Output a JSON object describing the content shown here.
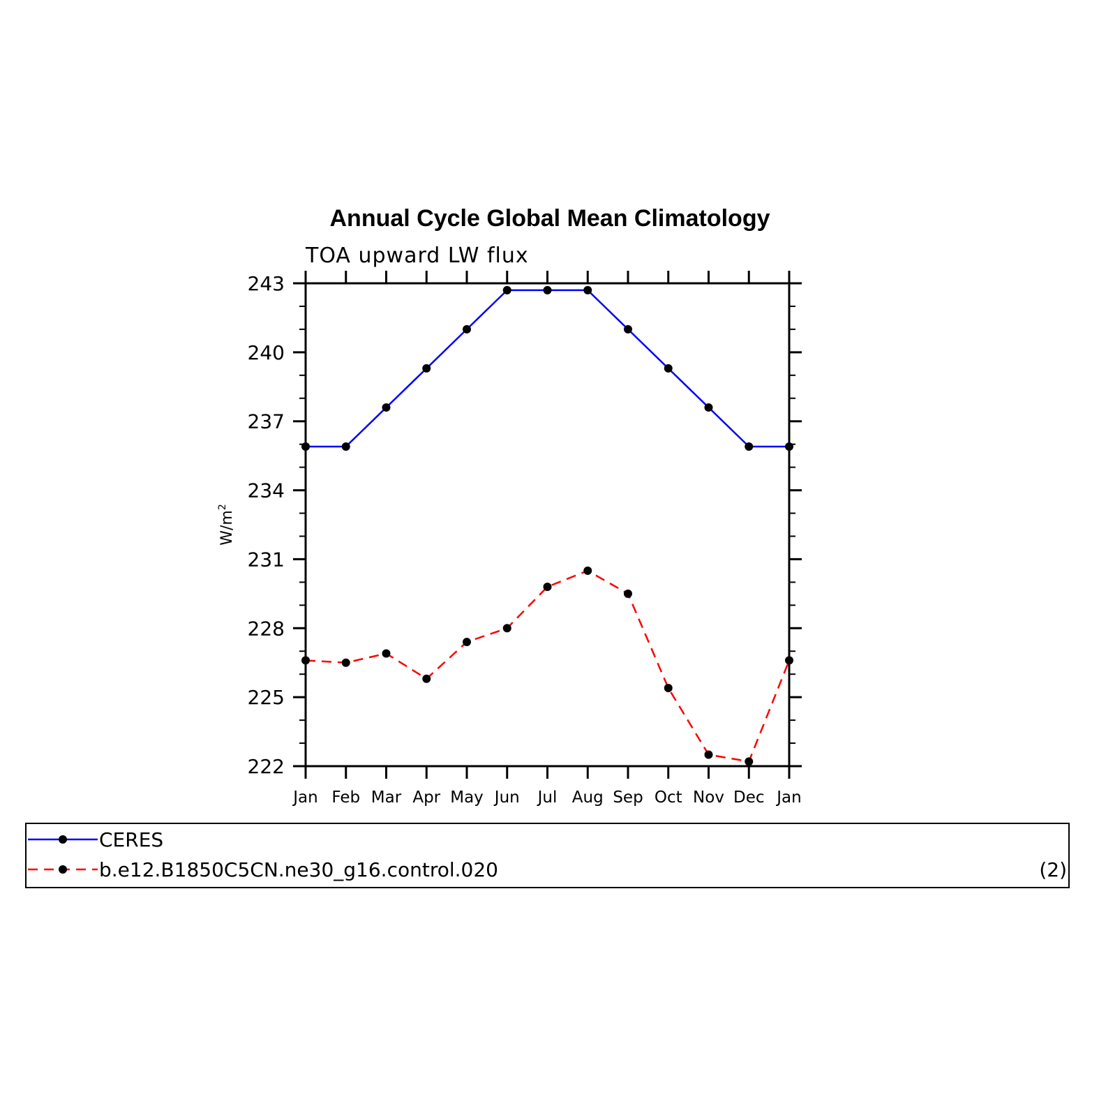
{
  "chart_data": {
    "type": "line",
    "title": "Annual Cycle Global Mean Climatology",
    "subtitle": "TOA upward LW flux",
    "ylabel": "W/m",
    "ylabel_sup": "2",
    "categories": [
      "Jan",
      "Feb",
      "Mar",
      "Apr",
      "May",
      "Jun",
      "Jul",
      "Aug",
      "Sep",
      "Oct",
      "Nov",
      "Dec",
      "Jan"
    ],
    "ylim": [
      222,
      243
    ],
    "yticks": [
      "243",
      "240",
      "237",
      "234",
      "231",
      "228",
      "225",
      "222"
    ],
    "yticks_values": [
      243,
      240,
      237,
      234,
      231,
      228,
      225,
      222
    ],
    "series": [
      {
        "name": "CERES",
        "color": "#0000ff",
        "dash": "solid",
        "values": [
          235.9,
          235.9,
          237.6,
          239.3,
          241.0,
          242.7,
          242.7,
          242.7,
          241.0,
          239.3,
          237.6,
          235.9,
          235.9
        ]
      },
      {
        "name": "b.e12.B1850C5CN.ne30_g16.control.020",
        "color": "#ff0000",
        "dash": "dashed",
        "values": [
          226.6,
          226.5,
          226.9,
          225.8,
          227.4,
          228.0,
          229.8,
          230.5,
          229.5,
          225.4,
          222.5,
          222.2,
          226.6
        ]
      }
    ],
    "legend_position": "bottom",
    "legend_note": "(2)",
    "grid": false
  }
}
